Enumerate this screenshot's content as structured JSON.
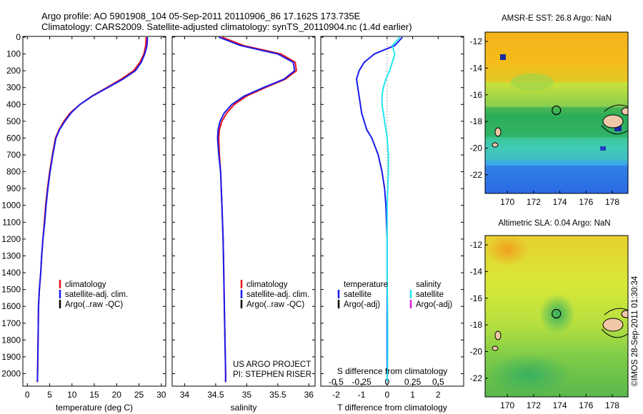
{
  "header": {
    "line1": "Argo profile: AO 5901908_104 05-Sep-2011 20110906_86 17.162S 173.735E",
    "line2": "Climatology: CARS2009. Satellite-adjusted climatology: synTS_20110904.nc (1.4d earlier)"
  },
  "colors": {
    "climatology": "#e8141b",
    "satellite_adj": "#1a1aee",
    "argo": "#000000",
    "salinity_sat": "#22e6f0",
    "salinity_argo": "#e020e0"
  },
  "depth_axis": {
    "ticks": [
      "0",
      "100",
      "200",
      "300",
      "400",
      "500",
      "600",
      "700",
      "800",
      "900",
      "1000",
      "1100",
      "1200",
      "1300",
      "1400",
      "1500",
      "1600",
      "1700",
      "1800",
      "1900",
      "2000"
    ],
    "range": [
      0,
      2070
    ]
  },
  "chart_data": [
    {
      "type": "line",
      "panel": "temperature",
      "xlabel": "temperature (deg C)",
      "ylabel": "",
      "xlim": [
        -1,
        31
      ],
      "ylim": [
        2070,
        0
      ],
      "xticks": [
        "0",
        "5",
        "10",
        "15",
        "20",
        "25",
        "30"
      ],
      "xtick_values": [
        0,
        5,
        10,
        15,
        20,
        25,
        30
      ],
      "legend": [
        "climatology",
        "satellite-adj. clim.",
        "Argo(..raw -QC)"
      ],
      "series": [
        {
          "name": "climatology",
          "color": "#e8141b",
          "x": [
            26.6,
            26.5,
            26.1,
            25.2,
            23.8,
            21.0,
            17.8,
            14.5,
            11.8,
            9.6,
            8.2,
            7.1,
            6.3,
            5.6,
            5.0,
            4.5,
            4.1,
            3.8,
            3.5,
            3.2,
            3.0,
            2.7,
            2.5,
            2.4,
            2.3,
            2.25
          ],
          "y": [
            0,
            50,
            100,
            150,
            200,
            250,
            300,
            350,
            400,
            450,
            500,
            550,
            600,
            700,
            800,
            900,
            1000,
            1100,
            1200,
            1300,
            1400,
            1500,
            1600,
            1800,
            2000,
            2050
          ]
        },
        {
          "name": "satellite-adj. clim.",
          "color": "#1a1aee",
          "x": [
            26.9,
            26.8,
            26.3,
            25.5,
            24.2,
            21.4,
            18.0,
            14.6,
            11.8,
            9.8,
            8.4,
            7.2,
            6.4,
            5.7,
            5.1,
            4.6,
            4.2,
            3.9,
            3.5,
            3.2,
            3.0,
            2.7,
            2.5,
            2.4,
            2.3,
            2.25
          ],
          "y": [
            0,
            50,
            100,
            150,
            200,
            250,
            300,
            350,
            400,
            450,
            500,
            550,
            600,
            700,
            800,
            900,
            1000,
            1100,
            1200,
            1300,
            1400,
            1500,
            1600,
            1800,
            2000,
            2050
          ]
        }
      ]
    },
    {
      "type": "line",
      "panel": "salinity",
      "xlabel": "salinity",
      "ylabel": "",
      "xlim": [
        33.8,
        36.1
      ],
      "ylim": [
        2070,
        0
      ],
      "xticks": [
        "34",
        "34.5",
        "35",
        "35.5",
        "36"
      ],
      "xtick_values": [
        34,
        34.5,
        35,
        35.5,
        36
      ],
      "legend": [
        "climatology",
        "satellite-adj. clim.",
        "Argo(..raw -QC)"
      ],
      "annotation": [
        "US ARGO PROJECT",
        "PI: STEPHEN RISER"
      ],
      "series": [
        {
          "name": "climatology",
          "color": "#e8141b",
          "x": [
            34.6,
            34.95,
            35.55,
            35.78,
            35.8,
            35.62,
            35.3,
            35.0,
            34.8,
            34.68,
            34.6,
            34.56,
            34.55,
            34.56,
            34.58,
            34.6,
            34.62,
            34.63,
            34.64,
            34.65,
            34.66,
            34.66
          ],
          "y": [
            0,
            50,
            100,
            150,
            200,
            250,
            300,
            350,
            400,
            450,
            500,
            550,
            600,
            700,
            800,
            1000,
            1200,
            1400,
            1600,
            1800,
            2000,
            2050
          ]
        },
        {
          "name": "satellite-adj. clim.",
          "color": "#1a1aee",
          "x": [
            34.55,
            34.9,
            35.5,
            35.75,
            35.77,
            35.6,
            35.27,
            34.96,
            34.76,
            34.64,
            34.57,
            34.54,
            34.53,
            34.55,
            34.58,
            34.6,
            34.62,
            34.63,
            34.64,
            34.65,
            34.66,
            34.66
          ],
          "y": [
            0,
            50,
            100,
            150,
            200,
            250,
            300,
            350,
            400,
            450,
            500,
            550,
            600,
            700,
            800,
            1000,
            1200,
            1400,
            1600,
            1800,
            2000,
            2050
          ]
        }
      ]
    },
    {
      "type": "line",
      "panel": "difference",
      "xlabel": "T difference from climatology",
      "xlabel_top": "S difference from climatology",
      "xlim": [
        -2.6,
        3.0
      ],
      "ylim": [
        2070,
        0
      ],
      "xticks": [
        "-2",
        "-1",
        "0",
        "1",
        "2"
      ],
      "xtick_values": [
        -2,
        -1,
        0,
        1,
        2
      ],
      "sticks": [
        "-0.5",
        "-0.25",
        "0",
        "0.25",
        "0.5"
      ],
      "stick_values": [
        -2,
        -1,
        0,
        1,
        2
      ],
      "legend_temperature": [
        "temperature",
        "satellite",
        "Argo(-adj)"
      ],
      "legend_salinity": [
        "salinity",
        "satellite",
        "Argo(-adj)"
      ],
      "series": [
        {
          "name": "satellite",
          "color": "#1a1aee",
          "x": [
            0.6,
            0.3,
            -0.5,
            -0.9,
            -1.1,
            -1.2,
            -1.15,
            -1.1,
            -1.05,
            -1.0,
            -0.9,
            -0.8,
            -0.6,
            -0.35,
            -0.2,
            -0.1,
            -0.05,
            0.0,
            0.0
          ],
          "y": [
            0,
            50,
            100,
            150,
            200,
            250,
            300,
            350,
            400,
            450,
            500,
            550,
            600,
            700,
            800,
            900,
            1000,
            1200,
            2050
          ]
        },
        {
          "name": "satellite",
          "color": "#22e6f0",
          "x": [
            0.5,
            0.2,
            0.3,
            0.2,
            0.1,
            -0.05,
            -0.15,
            -0.2,
            -0.2,
            -0.15,
            -0.1,
            -0.05,
            0.0,
            0.05,
            0.05,
            0.0,
            0.0,
            0.02,
            0.02,
            0.0
          ],
          "y": [
            0,
            50,
            100,
            150,
            200,
            250,
            300,
            350,
            400,
            450,
            500,
            550,
            600,
            700,
            800,
            1000,
            1400,
            1700,
            1900,
            2050
          ]
        }
      ]
    },
    {
      "type": "heatmap",
      "panel": "sst_map",
      "title": "AMSR-E SST: 26.8 Argo: NaN",
      "xticks": [
        "170",
        "172",
        "174",
        "176",
        "178"
      ],
      "xtick_values": [
        170,
        172,
        174,
        176,
        178
      ],
      "yticks": [
        "-12",
        "-14",
        "-16",
        "-18",
        "-20",
        "-22"
      ],
      "ytick_values": [
        -12,
        -14,
        -16,
        -18,
        -20,
        -22
      ],
      "xlim": [
        168.3,
        179.2
      ],
      "ylim": [
        -23.4,
        -11.3
      ],
      "marker": {
        "lon": 173.735,
        "lat": -17.162
      }
    },
    {
      "type": "heatmap",
      "panel": "sla_map",
      "title": "Altimetric SLA: 0.04 Argo: NaN",
      "xticks": [
        "170",
        "172",
        "174",
        "176",
        "178"
      ],
      "xtick_values": [
        170,
        172,
        174,
        176,
        178
      ],
      "yticks": [
        "-12",
        "-14",
        "-16",
        "-18",
        "-20",
        "-22"
      ],
      "ytick_values": [
        -12,
        -14,
        -16,
        -18,
        -20,
        -22
      ],
      "xlim": [
        168.3,
        179.2
      ],
      "ylim": [
        -23.4,
        -11.3
      ],
      "marker": {
        "lon": 173.735,
        "lat": -17.162
      }
    }
  ],
  "footer": {
    "credit": "©IMOS 28-Sep-2011 01:30:34"
  }
}
